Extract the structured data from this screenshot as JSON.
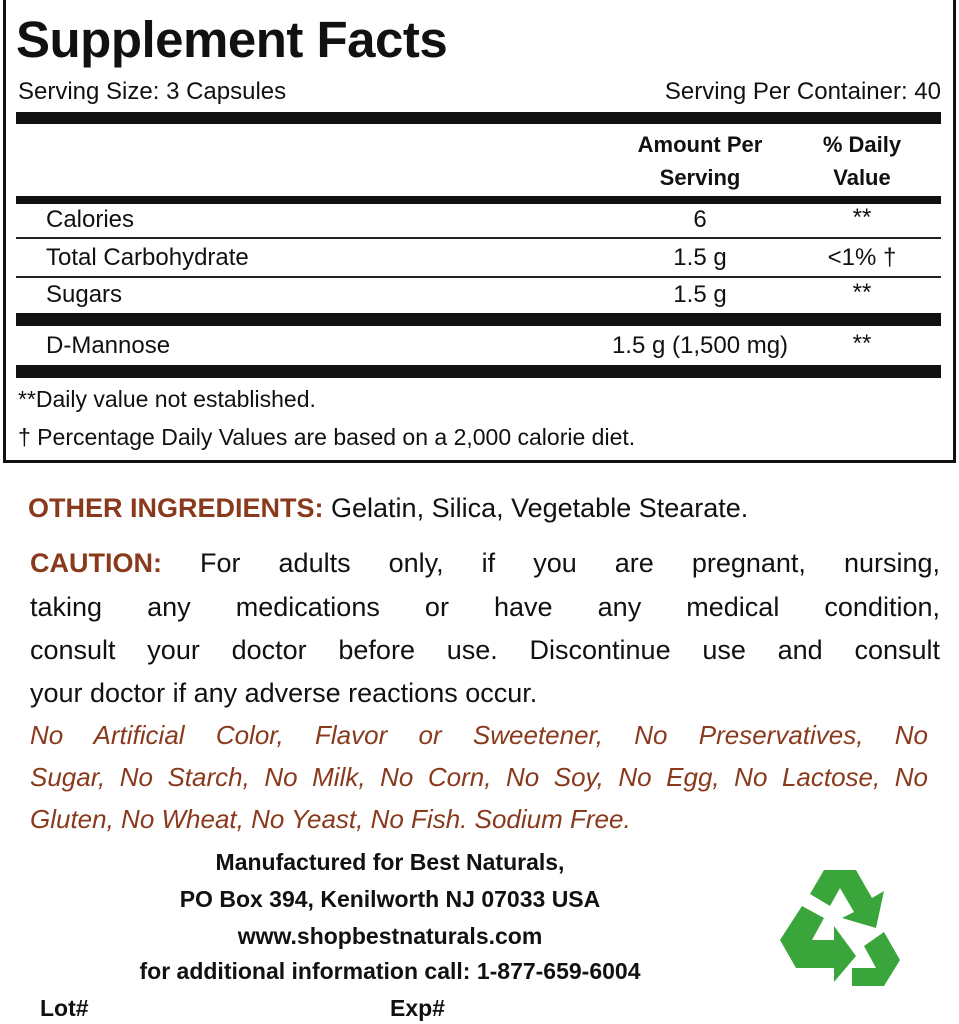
{
  "title": "Supplement Facts",
  "serving_size": "Serving Size: 3 Capsules",
  "servings_per_container": "Serving Per Container: 40",
  "headers": {
    "amount_1": "Amount Per",
    "amount_2": "Serving",
    "dv_1": "% Daily",
    "dv_2": "Value"
  },
  "rows": [
    {
      "name": "Calories",
      "amount": "6",
      "dv": "**"
    },
    {
      "name": "Total Carbohydrate",
      "amount": "1.5 g",
      "dv": "<1% †"
    },
    {
      "name": "Sugars",
      "amount": "1.5 g",
      "dv": "**"
    },
    {
      "name": "D-Mannose",
      "amount": "1.5 g (1,500 mg)",
      "dv": "**"
    }
  ],
  "notes": [
    "**Daily value not established.",
    "† Percentage Daily Values are based on a 2,000 calorie diet."
  ],
  "other_ingredients": {
    "label": "OTHER INGREDIENTS:",
    "text": " Gelatin, Silica, Vegetable Stearate."
  },
  "caution": {
    "label": "CAUTION:",
    "lines": [
      " For adults only, if you are pregnant, nursing,",
      "taking any medications or have any medical condition,",
      "consult your doctor before use. Discontinue use and consult",
      "your doctor if any adverse reactions occur."
    ]
  },
  "free_from": [
    "No Artificial Color, Flavor or Sweetener, No Preservatives, No",
    "Sugar, No Starch, No Milk, No Corn, No Soy, No Egg, No Lactose, No",
    "Gluten, No Wheat, No Yeast, No Fish. Sodium Free."
  ],
  "manufacturer": [
    "Manufactured for Best Naturals,",
    "PO Box 394, Kenilworth NJ 07033 USA",
    "www.shopbestnaturals.com",
    "for additional information call: 1-877-659-6004"
  ],
  "lot_label": "Lot#",
  "exp_label": "Exp#",
  "icons": {
    "recycle": "recycle-icon"
  },
  "colors": {
    "accent": "#8a3a1c",
    "recycle": "#3aa53a"
  }
}
